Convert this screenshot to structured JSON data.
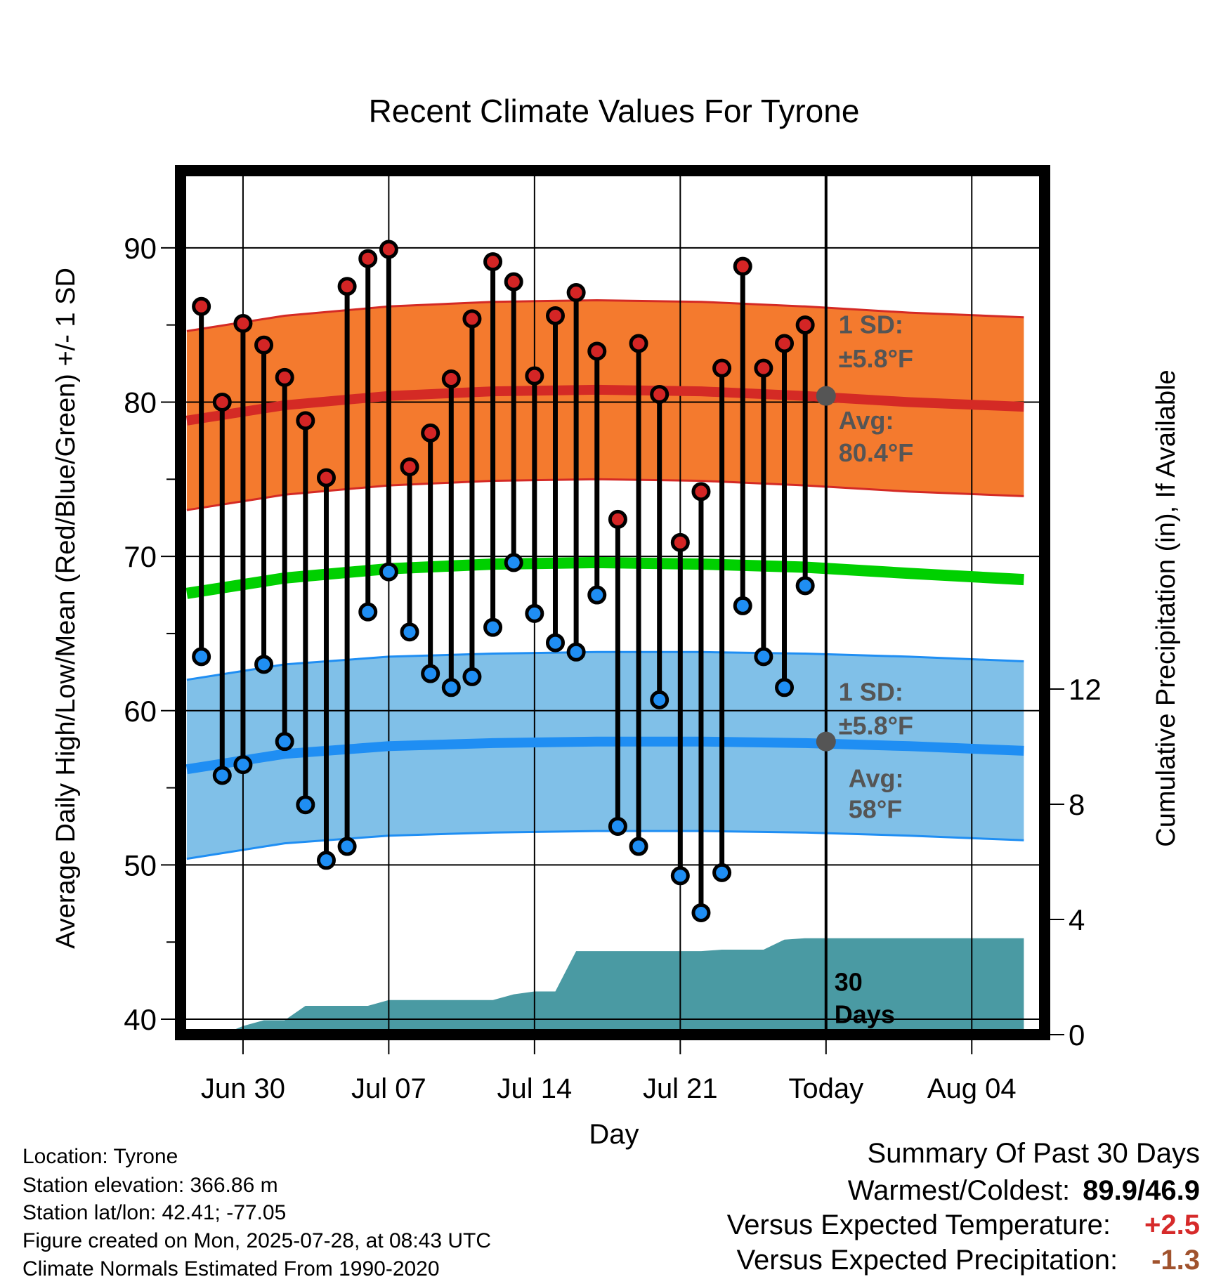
{
  "chart_data": {
    "type": "line",
    "title": "Recent Climate Values For Tyrone",
    "xlabel": "Day",
    "ylabel": "Average Daily High/Low/Mean (Red/Blue/Green) +/- 1 SD",
    "y2label": "Cumulative Precipitation (in), If Available",
    "ylim": [
      39,
      95
    ],
    "y2lim": [
      0,
      30
    ],
    "x_ticks": [
      {
        "day": 3,
        "label": "Jun 30"
      },
      {
        "day": 10,
        "label": "Jul 07"
      },
      {
        "day": 17,
        "label": "Jul 14"
      },
      {
        "day": 24,
        "label": "Jul 21"
      },
      {
        "day": 31,
        "label": "Today"
      },
      {
        "day": 38,
        "label": "Aug 04"
      }
    ],
    "y_ticks": [
      40,
      50,
      60,
      70,
      80,
      90
    ],
    "y2_ticks": [
      0,
      4,
      8,
      12
    ],
    "xlim": [
      0,
      41.5
    ],
    "today_day": 31,
    "days": [
      1,
      2,
      3,
      4,
      5,
      6,
      7,
      8,
      9,
      10,
      11,
      12,
      13,
      14,
      15,
      16,
      17,
      18,
      19,
      20,
      21,
      22,
      23,
      24,
      25,
      26,
      27,
      28,
      29,
      30
    ],
    "highs": [
      86.2,
      80.0,
      85.1,
      83.7,
      81.6,
      78.8,
      75.1,
      87.5,
      89.3,
      89.9,
      75.8,
      78.0,
      81.5,
      85.4,
      89.1,
      87.8,
      81.7,
      85.6,
      87.1,
      83.3,
      72.4,
      83.8,
      80.5,
      70.9,
      74.2,
      82.2,
      88.8,
      82.2,
      83.8,
      85.0
    ],
    "lows": [
      63.5,
      55.8,
      56.5,
      63.0,
      58.0,
      53.9,
      50.3,
      51.2,
      66.4,
      69.0,
      65.1,
      62.4,
      61.5,
      62.2,
      65.4,
      69.6,
      66.3,
      64.4,
      63.8,
      67.5,
      52.5,
      51.2,
      60.7,
      49.3,
      46.9,
      49.5,
      66.8,
      63.5,
      61.5,
      68.1
    ],
    "normals": {
      "x": [
        0.3,
        5,
        10,
        15,
        20,
        25,
        30,
        35,
        40.5
      ],
      "avg_high": [
        78.8,
        79.8,
        80.4,
        80.7,
        80.8,
        80.7,
        80.4,
        80.0,
        79.7
      ],
      "avg_low": [
        56.2,
        57.2,
        57.7,
        57.9,
        58.0,
        58.0,
        57.9,
        57.7,
        57.4
      ],
      "avg_mean": [
        67.6,
        68.6,
        69.2,
        69.5,
        69.6,
        69.5,
        69.3,
        68.9,
        68.5
      ],
      "sd": 5.8
    },
    "precip": {
      "x": [
        0.3,
        1.5,
        2,
        3,
        4,
        5,
        6,
        7,
        8,
        9,
        10,
        11,
        12,
        13,
        14,
        15,
        16,
        17,
        18,
        19,
        20,
        21,
        22,
        23,
        24,
        25,
        26,
        27,
        28,
        29,
        30,
        31,
        40.5
      ],
      "y": [
        0,
        0,
        0,
        0.3,
        0.5,
        0.5,
        1.0,
        1.0,
        1.0,
        1.0,
        1.2,
        1.2,
        1.2,
        1.2,
        1.2,
        1.2,
        1.4,
        1.5,
        1.5,
        2.9,
        2.9,
        2.9,
        2.9,
        2.9,
        2.9,
        2.9,
        2.95,
        2.95,
        2.95,
        3.3,
        3.35,
        3.35,
        3.35
      ]
    },
    "annotations": {
      "high_sd": "1 SD:",
      "high_sd_val": "±5.8°F",
      "high_avg": "Avg:",
      "high_avg_val": "80.4°F",
      "high_avg_value": 80.4,
      "low_sd": "1 SD:",
      "low_sd_val": "±5.8°F",
      "low_avg": "Avg:",
      "low_avg_val": "58°F",
      "low_avg_value": 58,
      "window_a": "30",
      "window_b": "Days"
    },
    "colors": {
      "high_band": "#f47a2e",
      "high_line": "#d42a25",
      "low_band": "#80c0e8",
      "low_line": "#1f8ef3",
      "mean_line": "#00d000",
      "precip": "#4a9aa3",
      "high_dot": "#d42525",
      "low_dot": "#1f8ef3",
      "label": "#555555"
    }
  },
  "info": {
    "location": "Location: Tyrone",
    "elevation": "Station elevation: 366.86 m",
    "latlon": "Station lat/lon: 42.41; -77.05",
    "created": "Figure created on Mon, 2025-07-28, at 08:43 UTC",
    "normals": "Climate Normals Estimated From 1990-2020"
  },
  "summary": {
    "title": "Summary Of Past 30 Days",
    "warm_label": "Warmest/Coldest:",
    "warm_value": "89.9/46.9",
    "temp_label": "Versus Expected Temperature:",
    "temp_value": "+2.5",
    "temp_color": "#d62a2a",
    "precip_label": "Versus Expected Precipitation:",
    "precip_value": "-1.3",
    "precip_color": "#a0522d"
  }
}
